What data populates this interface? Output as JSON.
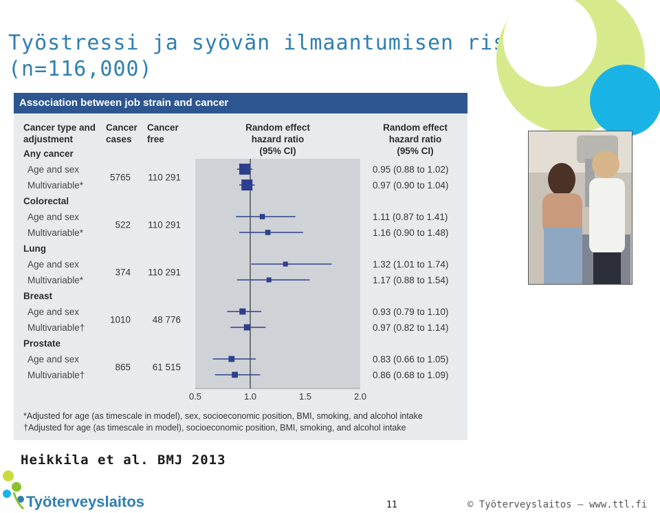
{
  "slide": {
    "title_line1": "Työstressi ja syövän ilmaantumisen riski",
    "title_line2": "(n=116,000)",
    "citation": "Heikkila et al. BMJ 2013",
    "page_number": "11",
    "footer": "© Työterveyslaitos  –  www.ttl.fi",
    "logo_text": "Työterveyslaitos",
    "colors": {
      "title": "#2f7fb0",
      "panel_header": "#2d5690",
      "marker": "#2d3f8c",
      "shade": "#cfd2d6",
      "decor_lime": "#d6ea8c",
      "decor_cyan": "#19b3e6"
    }
  },
  "panel": {
    "header": "Association between job strain and cancer",
    "col_type": "Cancer type and adjustment",
    "col_cases": "Cancer cases",
    "col_free": "Cancer free",
    "col_plot": "Random effect hazard ratio (95% CI)",
    "col_hr": "Random effect hazard ratio (95% CI)",
    "footnote1": "*Adjusted for age (as timescale in model), sex, socioeconomic position, BMI, smoking, and alcohol intake",
    "footnote2": "†Adjusted for age (as timescale in model), socioeconomic position, BMI, smoking, and alcohol intake"
  },
  "chart_data": {
    "type": "forest",
    "x_ticks": [
      "0.5",
      "1.0",
      "1.5",
      "2.0"
    ],
    "xlim": [
      0.5,
      2.0
    ],
    "reference_line": 1.0,
    "groups": [
      {
        "name": "Any cancer",
        "cases": "5765",
        "free": "110 291",
        "rows": [
          {
            "label": "Age and sex",
            "hr": 0.95,
            "lo": 0.88,
            "hi": 1.02,
            "text": "0.95 (0.88 to 1.02)",
            "weight": 5765
          },
          {
            "label": "Multivariable*",
            "hr": 0.97,
            "lo": 0.9,
            "hi": 1.04,
            "text": "0.97 (0.90 to 1.04)",
            "weight": 5765
          }
        ]
      },
      {
        "name": "Colorectal",
        "cases": "522",
        "free": "110 291",
        "rows": [
          {
            "label": "Age and sex",
            "hr": 1.11,
            "lo": 0.87,
            "hi": 1.41,
            "text": "1.11 (0.87 to 1.41)",
            "weight": 522
          },
          {
            "label": "Multivariable*",
            "hr": 1.16,
            "lo": 0.9,
            "hi": 1.48,
            "text": "1.16 (0.90 to 1.48)",
            "weight": 522
          }
        ]
      },
      {
        "name": "Lung",
        "cases": "374",
        "free": "110 291",
        "rows": [
          {
            "label": "Age and sex",
            "hr": 1.32,
            "lo": 1.01,
            "hi": 1.74,
            "text": "1.32 (1.01 to 1.74)",
            "weight": 374
          },
          {
            "label": "Multivariable*",
            "hr": 1.17,
            "lo": 0.88,
            "hi": 1.54,
            "text": "1.17 (0.88 to 1.54)",
            "weight": 374
          }
        ]
      },
      {
        "name": "Breast",
        "cases": "1010",
        "free": "48 776",
        "rows": [
          {
            "label": "Age and sex",
            "hr": 0.93,
            "lo": 0.79,
            "hi": 1.1,
            "text": "0.93 (0.79 to 1.10)",
            "weight": 1010
          },
          {
            "label": "Multivariable†",
            "hr": 0.97,
            "lo": 0.82,
            "hi": 1.14,
            "text": "0.97 (0.82 to 1.14)",
            "weight": 1010
          }
        ]
      },
      {
        "name": "Prostate",
        "cases": "865",
        "free": "61 515",
        "rows": [
          {
            "label": "Age and sex",
            "hr": 0.83,
            "lo": 0.66,
            "hi": 1.05,
            "text": "0.83 (0.66 to 1.05)",
            "weight": 865
          },
          {
            "label": "Multivariable†",
            "hr": 0.86,
            "lo": 0.68,
            "hi": 1.09,
            "text": "0.86 (0.68 to 1.09)",
            "weight": 865
          }
        ]
      }
    ]
  }
}
